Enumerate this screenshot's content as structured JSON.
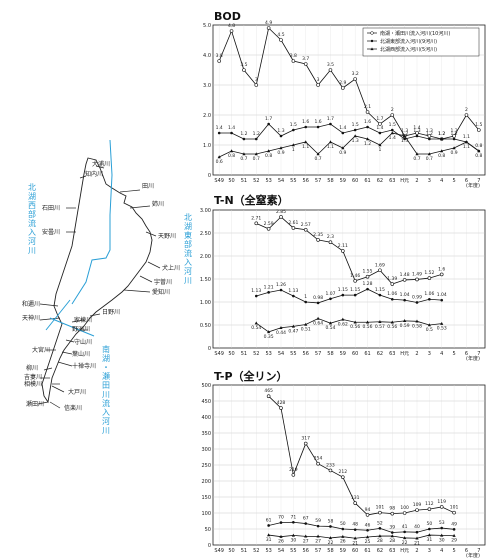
{
  "map": {
    "rivers": [
      {
        "name": "大浦川"
      },
      {
        "name": "知内川"
      },
      {
        "name": "石田川"
      },
      {
        "name": "安曇川"
      },
      {
        "name": "田川"
      },
      {
        "name": "姉川"
      },
      {
        "name": "天野川"
      },
      {
        "name": "犬上川"
      },
      {
        "name": "宇曽川"
      },
      {
        "name": "愛知川"
      },
      {
        "name": "和邇川"
      },
      {
        "name": "天神川"
      },
      {
        "name": "家棟川"
      },
      {
        "name": "野洲川"
      },
      {
        "name": "日野川"
      },
      {
        "name": "守山川"
      },
      {
        "name": "大宮川"
      },
      {
        "name": "葉山川"
      },
      {
        "name": "十禅寺川"
      },
      {
        "name": "柳川"
      },
      {
        "name": "吉妻川"
      },
      {
        "name": "相模川"
      },
      {
        "name": "大戸川"
      },
      {
        "name": "瀬田川"
      },
      {
        "name": "信楽川"
      }
    ],
    "vertical_labels": [
      {
        "text": "北湖西部流入河川",
        "color": "#2a9fd6"
      },
      {
        "text": "北湖東部流入河川",
        "color": "#2a9fd6"
      },
      {
        "text": "南湖・瀬田川流入河川",
        "color": "#2a9fd6"
      }
    ]
  },
  "chart_data": [
    {
      "type": "line",
      "title": "BOD",
      "x_ticks": [
        "S49",
        "50",
        "51",
        "52",
        "53",
        "54",
        "55",
        "56",
        "57",
        "58",
        "59",
        "60",
        "61",
        "62",
        "63",
        "H元",
        "2",
        "3",
        "4",
        "5",
        "6",
        "7"
      ],
      "x_unit": "(年度)",
      "ylim": [
        0,
        5
      ],
      "y_ticks": [
        "0",
        "1.0",
        "2.0",
        "3.0",
        "4.0",
        "5.0"
      ],
      "legend_position": "top-right",
      "series": [
        {
          "name": "南湖・瀬田川流入河川(10河川)",
          "marker": "open-circle",
          "values": [
            3.8,
            4.8,
            3.5,
            3.0,
            4.9,
            4.5,
            3.8,
            3.7,
            3.0,
            3.5,
            2.9,
            3.2,
            2.1,
            1.7,
            2.0,
            1.3,
            1.4,
            1.3,
            1.2,
            1.3,
            2.0,
            1.5
          ]
        },
        {
          "name": "北湖東部流入河川(9河川)",
          "marker": "dot",
          "values": [
            1.4,
            1.4,
            1.2,
            1.2,
            1.7,
            1.3,
            1.5,
            1.6,
            1.6,
            1.7,
            1.4,
            1.5,
            1.6,
            1.4,
            1.5,
            1.2,
            1.3,
            1.2,
            1.2,
            1.2,
            1.1,
            0.8
          ]
        },
        {
          "name": "北湖西部流入河川(5河川)",
          "marker": "triangle",
          "values": [
            0.6,
            0.8,
            0.7,
            0.7,
            0.8,
            0.9,
            1.0,
            1.1,
            0.7,
            1.1,
            0.9,
            1.3,
            1.2,
            1.0,
            1.4,
            1.3,
            0.7,
            0.7,
            0.8,
            0.9,
            1.1,
            0.8
          ]
        }
      ]
    },
    {
      "type": "line",
      "title": "T-N（全窒素）",
      "x_ticks": [
        "S49",
        "50",
        "51",
        "52",
        "53",
        "54",
        "55",
        "56",
        "57",
        "58",
        "59",
        "60",
        "61",
        "62",
        "63",
        "H元",
        "2",
        "3",
        "4",
        "5",
        "6",
        "7"
      ],
      "x_unit": "(年度)",
      "ylim": [
        0,
        3.0
      ],
      "y_ticks": [
        "0",
        "0.50",
        "1.00",
        "1.50",
        "2.00",
        "2.50",
        "3.00"
      ],
      "x_start_index": 3,
      "series": [
        {
          "name": "南湖・瀬田川流入河川(10河川)",
          "marker": "open-circle",
          "values": [
            2.71,
            2.59,
            2.85,
            2.61,
            2.57,
            2.35,
            2.3,
            2.11,
            1.46,
            1.55,
            1.69,
            1.39,
            1.48,
            1.49,
            1.52,
            1.6
          ]
        },
        {
          "name": "北湖東部流入河川(9河川)",
          "marker": "dot",
          "values": [
            1.13,
            1.21,
            1.26,
            1.13,
            1.0,
            0.98,
            1.07,
            1.15,
            1.15,
            1.28,
            1.15,
            1.06,
            1.04,
            0.99,
            1.06,
            1.04
          ]
        },
        {
          "name": "北湖西部流入河川(5河川)",
          "marker": "triangle",
          "values": [
            0.54,
            0.35,
            0.44,
            0.47,
            0.51,
            0.64,
            0.54,
            0.62,
            0.56,
            0.56,
            0.57,
            0.56,
            0.59,
            0.58,
            0.5,
            0.53
          ]
        }
      ]
    },
    {
      "type": "line",
      "title": "T-P（全リン）",
      "x_ticks": [
        "S49",
        "50",
        "51",
        "52",
        "53",
        "54",
        "55",
        "56",
        "57",
        "58",
        "59",
        "60",
        "61",
        "62",
        "63",
        "H元",
        "2",
        "3",
        "4",
        "5",
        "6",
        "7"
      ],
      "x_unit": "(年度)",
      "ylim": [
        0,
        500
      ],
      "y_ticks": [
        "0",
        "50",
        "100",
        "150",
        "200",
        "250",
        "300",
        "350",
        "400",
        "450",
        "500"
      ],
      "x_start_index": 4,
      "series": [
        {
          "name": "南湖・瀬田川流入河川(10河川)",
          "marker": "open-circle",
          "values": [
            465,
            428,
            219,
            317,
            254,
            233,
            212,
            131,
            94,
            101,
            98,
            100,
            109,
            112,
            119,
            101
          ]
        },
        {
          "name": "北湖東部流入河川(9河川)",
          "marker": "dot",
          "values": [
            61,
            70,
            71,
            67,
            59,
            58,
            50,
            48,
            46,
            52,
            39,
            41,
            40,
            50,
            53,
            49
          ]
        },
        {
          "name": "北湖西部流入河川(5河川)",
          "marker": "triangle",
          "values": [
            31,
            26,
            30,
            27,
            27,
            22,
            26,
            21,
            25,
            28,
            28,
            22,
            21,
            31,
            30,
            29
          ]
        }
      ]
    }
  ]
}
